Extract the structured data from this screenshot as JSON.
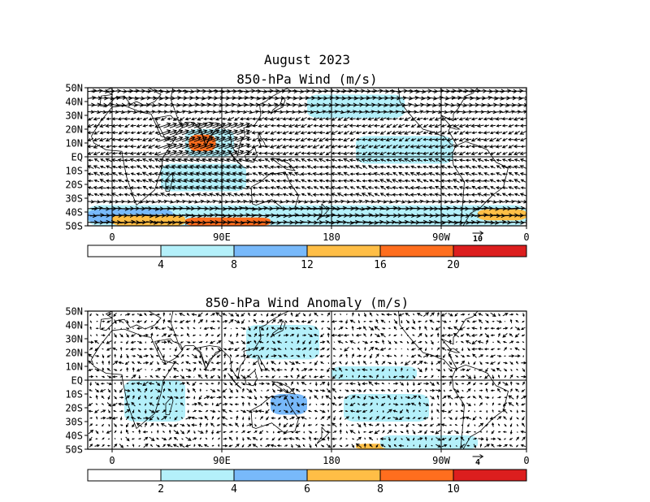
{
  "figure_title": "August 2023",
  "colors": {
    "c1": "#ffffff",
    "c2": "#b4f0fa",
    "c3": "#78b9fa",
    "c4": "#ffbe46",
    "c5": "#ff6e1e",
    "c6": "#dc1e1e",
    "vector": "#000000",
    "coast": "#000000"
  },
  "chart_data": [
    {
      "type": "vector-map",
      "title": "850-hPa Wind (m/s)",
      "lat_range": [
        -50,
        50
      ],
      "lon_range": [
        -20,
        340
      ],
      "y_tick_labels": [
        "50N",
        "40N",
        "30N",
        "20N",
        "10N",
        "EQ",
        "10S",
        "20S",
        "30S",
        "40S",
        "50S"
      ],
      "x_tick_labels": [
        "0",
        "90E",
        "180",
        "90W",
        "0"
      ],
      "grid_lines": {
        "lon": [
          0,
          90,
          180,
          270
        ],
        "lat": [
          0
        ]
      },
      "reference_vector": {
        "value": "10",
        "units": "m/s"
      },
      "colorbar": {
        "bounds": [
          "4",
          "8",
          "12",
          "16",
          "20"
        ],
        "units": "m/s"
      },
      "shaded_regions": [
        {
          "level": 2,
          "lon": [
            60,
            100
          ],
          "lat": [
            0,
            20
          ]
        },
        {
          "level": 5,
          "lon": [
            63,
            85
          ],
          "lat": [
            4,
            16
          ]
        },
        {
          "level": 2,
          "lon": [
            40,
            110
          ],
          "lat": [
            -25,
            -5
          ]
        },
        {
          "level": 2,
          "lon": [
            -20,
            340
          ],
          "lat": [
            -50,
            -35
          ]
        },
        {
          "level": 3,
          "lon": [
            -20,
            50
          ],
          "lat": [
            -48,
            -38
          ]
        },
        {
          "level": 4,
          "lon": [
            0,
            60
          ],
          "lat": [
            -50,
            -42
          ]
        },
        {
          "level": 5,
          "lon": [
            60,
            130
          ],
          "lat": [
            -50,
            -44
          ]
        },
        {
          "level": 2,
          "lon": [
            200,
            280
          ],
          "lat": [
            -5,
            15
          ]
        },
        {
          "level": 2,
          "lon": [
            160,
            240
          ],
          "lat": [
            28,
            45
          ]
        },
        {
          "level": 4,
          "lon": [
            300,
            340
          ],
          "lat": [
            -46,
            -38
          ]
        }
      ]
    },
    {
      "type": "vector-map",
      "title": "850-hPa Wind Anomaly (m/s)",
      "lat_range": [
        -50,
        50
      ],
      "lon_range": [
        -20,
        340
      ],
      "y_tick_labels": [
        "50N",
        "40N",
        "30N",
        "20N",
        "10N",
        "EQ",
        "10S",
        "20S",
        "30S",
        "40S",
        "50S"
      ],
      "x_tick_labels": [
        "0",
        "90E",
        "180",
        "90W",
        "0"
      ],
      "grid_lines": {
        "lon": [
          0,
          90,
          180,
          270
        ],
        "lat": [
          0
        ]
      },
      "reference_vector": {
        "value": "4",
        "units": "m/s"
      },
      "colorbar": {
        "bounds": [
          "2",
          "4",
          "6",
          "8",
          "10"
        ],
        "units": "m/s"
      },
      "shaded_regions": [
        {
          "level": 2,
          "lon": [
            10,
            60
          ],
          "lat": [
            -30,
            0
          ]
        },
        {
          "level": 2,
          "lon": [
            110,
            170
          ],
          "lat": [
            15,
            40
          ]
        },
        {
          "level": 3,
          "lon": [
            130,
            160
          ],
          "lat": [
            -25,
            -10
          ]
        },
        {
          "level": 2,
          "lon": [
            190,
            260
          ],
          "lat": [
            -30,
            -10
          ]
        },
        {
          "level": 4,
          "lon": [
            200,
            240
          ],
          "lat": [
            -50,
            -46
          ]
        },
        {
          "level": 2,
          "lon": [
            220,
            300
          ],
          "lat": [
            -50,
            -40
          ]
        },
        {
          "level": 2,
          "lon": [
            180,
            250
          ],
          "lat": [
            0,
            10
          ]
        }
      ]
    }
  ]
}
